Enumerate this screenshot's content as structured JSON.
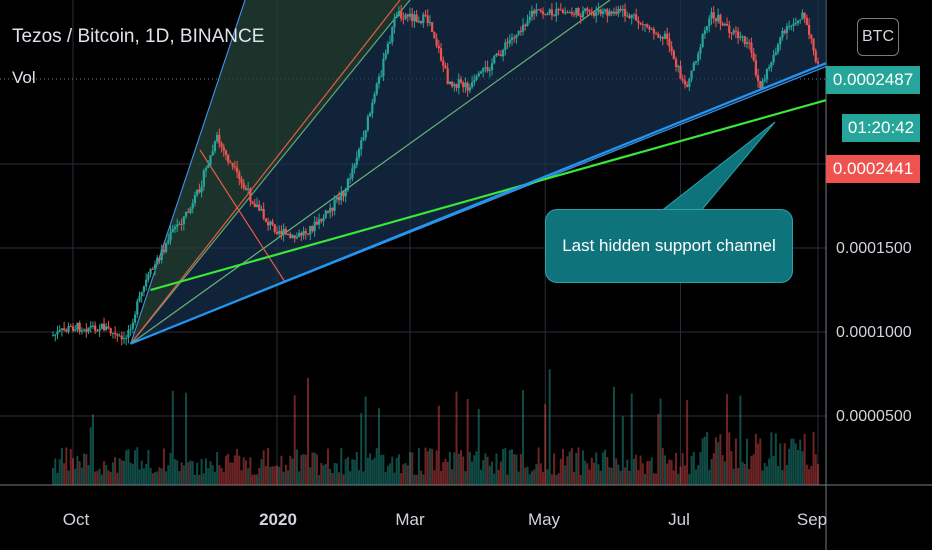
{
  "header": {
    "title": "Tezos / Bitcoin, 1D, BINANCE",
    "volume_label": "Vol",
    "currency_button": "BTC"
  },
  "price_tags": {
    "last_price": "0.0002487",
    "countdown": "01:20:42",
    "bid_price": "0.0002441",
    "last_color": "#26a69a",
    "bid_color": "#ef5350"
  },
  "annotation": {
    "text": "Last hidden support channel",
    "color": "#0f737b"
  },
  "chart_data": {
    "type": "candlestick",
    "title": "Tezos / Bitcoin, 1D, BINANCE",
    "y_ticks": [
      "0.0001500",
      "0.0001000",
      "0.0000500"
    ],
    "y_tick_values": [
      0.00015,
      0.0001,
      5e-05
    ],
    "x_ticks": [
      "Oct",
      "2020",
      "Mar",
      "May",
      "Jul",
      "Sep"
    ],
    "ylim": [
      1.8e-05,
      0.00029
    ],
    "grid": true,
    "up_color": "#26a69a",
    "down_color": "#ef5350",
    "price_path": [
      {
        "date": "2019-09-22",
        "price": 9.8e-05
      },
      {
        "date": "2019-10-01",
        "price": 0.000103
      },
      {
        "date": "2019-10-15",
        "price": 0.000103
      },
      {
        "date": "2019-10-24",
        "price": 9.4e-05
      },
      {
        "date": "2019-11-03",
        "price": 0.00013
      },
      {
        "date": "2019-11-15",
        "price": 0.00016
      },
      {
        "date": "2019-11-24",
        "price": 0.000175
      },
      {
        "date": "2019-12-05",
        "price": 0.000215
      },
      {
        "date": "2019-12-15",
        "price": 0.00019
      },
      {
        "date": "2019-12-28",
        "price": 0.000165
      },
      {
        "date": "2020-01-08",
        "price": 0.000155
      },
      {
        "date": "2020-01-20",
        "price": 0.000165
      },
      {
        "date": "2020-02-01",
        "price": 0.000185
      },
      {
        "date": "2020-02-12",
        "price": 0.00023
      },
      {
        "date": "2020-02-24",
        "price": 0.00029
      },
      {
        "date": "2020-03-10",
        "price": 0.000285
      },
      {
        "date": "2020-03-18",
        "price": 0.00025
      },
      {
        "date": "2020-03-28",
        "price": 0.000245
      },
      {
        "date": "2020-04-10",
        "price": 0.000265
      },
      {
        "date": "2020-04-25",
        "price": 0.00029
      },
      {
        "date": "2020-05-15",
        "price": 0.00029
      },
      {
        "date": "2020-06-05",
        "price": 0.00029
      },
      {
        "date": "2020-06-25",
        "price": 0.000275
      },
      {
        "date": "2020-07-03",
        "price": 0.000245
      },
      {
        "date": "2020-07-15",
        "price": 0.00029
      },
      {
        "date": "2020-08-01",
        "price": 0.00027
      },
      {
        "date": "2020-08-06",
        "price": 0.000245
      },
      {
        "date": "2020-08-15",
        "price": 0.000275
      },
      {
        "date": "2020-08-25",
        "price": 0.00029
      },
      {
        "date": "2020-09-02",
        "price": 0.000255
      }
    ],
    "trendlines": [
      {
        "name": "green support",
        "color": "#39e639",
        "from": {
          "date": "2019-11-05",
          "price": 0.000125
        },
        "to": {
          "date": "2020-09-05",
          "price": 0.000238
        }
      },
      {
        "name": "blue lower channel",
        "color": "#2196f3",
        "from": {
          "date": "2019-10-27",
          "price": 9.3e-05
        },
        "to": {
          "date": "2020-09-05",
          "price": 0.00026
        }
      }
    ]
  }
}
